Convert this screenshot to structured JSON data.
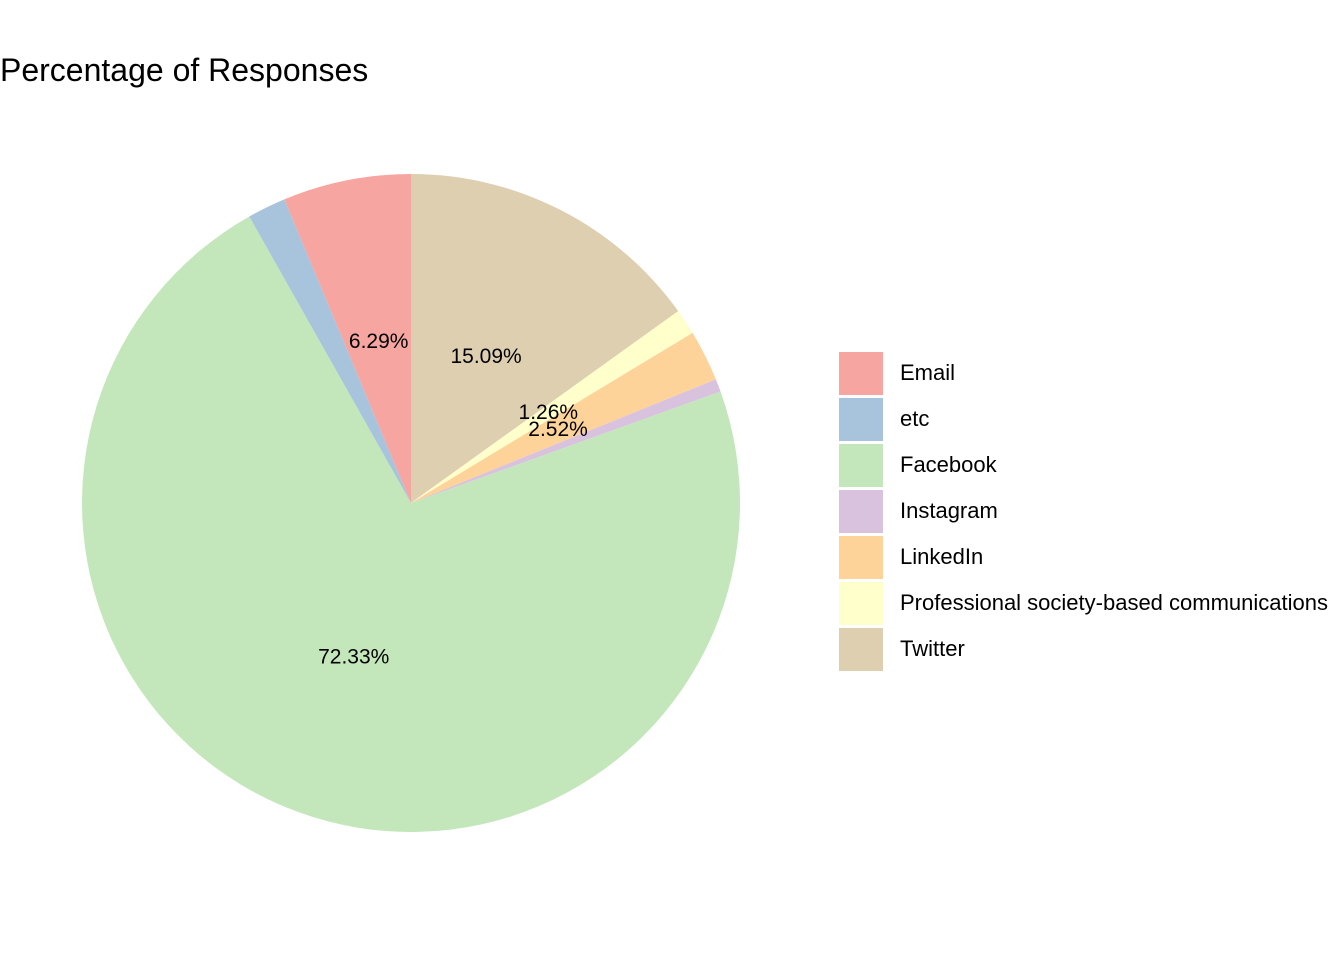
{
  "chart_data": {
    "type": "pie",
    "title": "Percentage of Responses",
    "legend_position": "right",
    "slices": [
      {
        "name": "Twitter",
        "value": 15.09,
        "label": "15.09%",
        "color": "#DECFB0"
      },
      {
        "name": "Professional society-based communications",
        "value": 1.26,
        "label": "1.26%",
        "color": "#FFFFCC"
      },
      {
        "name": "LinkedIn",
        "value": 2.52,
        "label": "2.52%",
        "color": "#FDD39A"
      },
      {
        "name": "Instagram",
        "value": 0.63,
        "label": "",
        "color": "#D8C2DE"
      },
      {
        "name": "Facebook",
        "value": 72.33,
        "label": "72.33%",
        "color": "#C3E7BA"
      },
      {
        "name": "etc",
        "value": 1.89,
        "label": "",
        "color": "#A8C3DC"
      },
      {
        "name": "Email",
        "value": 6.29,
        "label": "6.29%",
        "color": "#F6A5A0"
      }
    ]
  },
  "legend": {
    "items": [
      {
        "label": "Email",
        "color": "#F6A5A0"
      },
      {
        "label": "etc",
        "color": "#A8C3DC"
      },
      {
        "label": "Facebook",
        "color": "#C3E7BA"
      },
      {
        "label": "Instagram",
        "color": "#D8C2DE"
      },
      {
        "label": "LinkedIn",
        "color": "#FDD39A"
      },
      {
        "label": "Professional society-based communications",
        "color": "#FFFFCC"
      },
      {
        "label": "Twitter",
        "color": "#DECFB0"
      }
    ]
  }
}
